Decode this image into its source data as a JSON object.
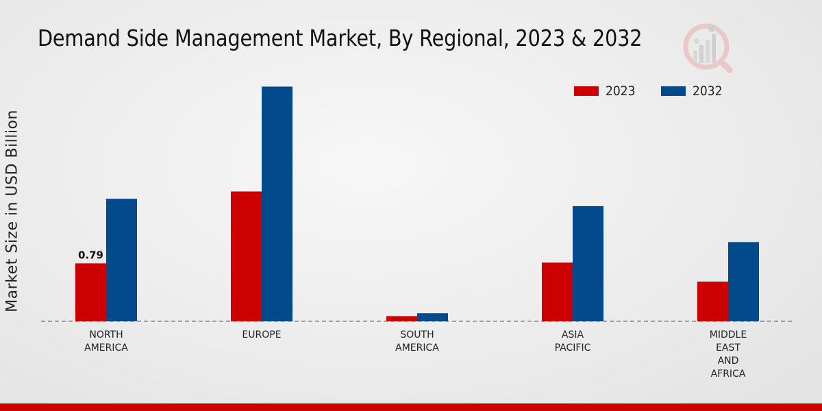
{
  "colors": {
    "2023": "#cc0000",
    "2032": "#024a8c",
    "bottom_bar": "#cc0000"
  },
  "logo": {
    "icon": "market-research-logo-icon"
  },
  "chart_data": {
    "type": "bar",
    "title": "Demand Side Management Market, By Regional, 2023 & 2032",
    "xlabel": "",
    "ylabel": "Market Size in USD Billion",
    "ylim": [
      0,
      3.4
    ],
    "grid": false,
    "legend_position": "top-right",
    "categories": [
      [
        "NORTH",
        "AMERICA"
      ],
      [
        "EUROPE"
      ],
      [
        "SOUTH",
        "AMERICA"
      ],
      [
        "ASIA",
        "PACIFIC"
      ],
      [
        "MIDDLE",
        "EAST",
        "AND",
        "AFRICA"
      ]
    ],
    "series": [
      {
        "name": "2023",
        "values": [
          0.79,
          1.77,
          0.07,
          0.8,
          0.54
        ]
      },
      {
        "name": "2032",
        "values": [
          1.67,
          3.2,
          0.11,
          1.57,
          1.08
        ]
      }
    ],
    "data_labels": [
      {
        "series": 0,
        "index": 0,
        "text": "0.79"
      }
    ]
  }
}
